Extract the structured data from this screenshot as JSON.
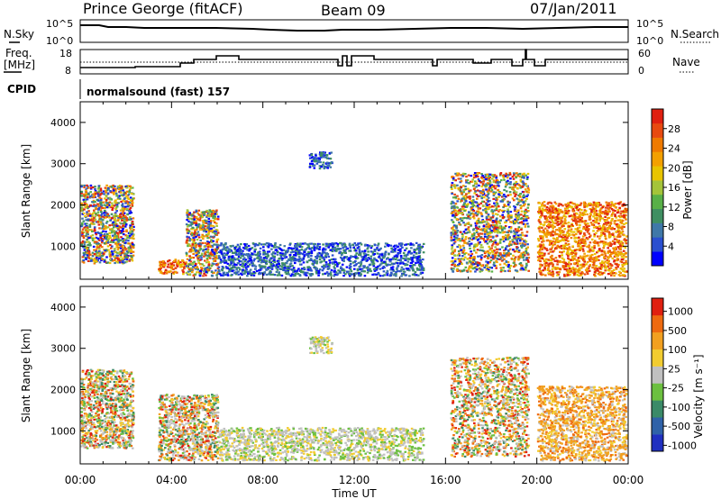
{
  "header": {
    "station": "Prince George (fitACF)",
    "beam": "Beam 09",
    "date": "07/Jan/2011"
  },
  "nsky_panel": {
    "left_label": "N.Sky",
    "right_label": "N.Search",
    "left_ticks": [
      "10^5",
      "10^0"
    ],
    "right_ticks": [
      "10^5",
      "10^0"
    ]
  },
  "freq_panel": {
    "left_label_line1": "Freq.",
    "left_label_line2": "[MHz]",
    "right_label": "Nave",
    "left_ticks": [
      "18",
      "8"
    ],
    "right_ticks": [
      "60",
      "0"
    ]
  },
  "cpid": {
    "label": "CPID",
    "value": "normalsound (fast) 157"
  },
  "chart_data": [
    {
      "type": "heatmap",
      "title": "",
      "xlabel": "Time UT",
      "ylabel": "Slant Range [km]",
      "x_ticks": [
        "00:00",
        "04:00",
        "08:00",
        "12:00",
        "16:00",
        "20:00",
        "00:00"
      ],
      "y_ticks": [
        "1000",
        "2000",
        "3000",
        "4000"
      ],
      "ylim": [
        200,
        4500
      ],
      "colorbar": {
        "label": "Power [dB]",
        "ticks": [
          "4",
          "8",
          "12",
          "16",
          "20",
          "24",
          "28"
        ],
        "colors": [
          "#0000ff",
          "#2a4fd0",
          "#3f78a8",
          "#3f8f62",
          "#58b048",
          "#a4c43a",
          "#e8c400",
          "#f3a000",
          "#ef7a00",
          "#e84a10",
          "#e02010"
        ]
      },
      "regions": [
        {
          "t": [
            0.0,
            2.3
          ],
          "r": [
            600,
            2500
          ],
          "level": "mixed"
        },
        {
          "t": [
            3.4,
            4.6
          ],
          "r": [
            350,
            700
          ],
          "level": "high"
        },
        {
          "t": [
            4.6,
            6.0
          ],
          "r": [
            300,
            1900
          ],
          "level": "mixed"
        },
        {
          "t": [
            6.0,
            15.0
          ],
          "r": [
            300,
            1100
          ],
          "level": "low"
        },
        {
          "t": [
            10.0,
            11.0
          ],
          "r": [
            2900,
            3300
          ],
          "level": "low"
        },
        {
          "t": [
            16.2,
            19.6
          ],
          "r": [
            400,
            2800
          ],
          "level": "mixed"
        },
        {
          "t": [
            20.0,
            23.9
          ],
          "r": [
            300,
            2100
          ],
          "level": "high"
        }
      ]
    },
    {
      "type": "heatmap",
      "title": "",
      "xlabel": "Time UT",
      "ylabel": "Slant Range [km]",
      "x_ticks": [
        "00:00",
        "04:00",
        "08:00",
        "12:00",
        "16:00",
        "20:00",
        "00:00"
      ],
      "y_ticks": [
        "1000",
        "2000",
        "3000",
        "4000"
      ],
      "ylim": [
        200,
        4500
      ],
      "colorbar": {
        "label": "Velocity [m s⁻¹]",
        "ticks": [
          "1000",
          "500",
          "100",
          "25",
          "-25",
          "-100",
          "-500",
          "-1000"
        ],
        "colors": [
          "#2030c0",
          "#2f62a8",
          "#3a8a68",
          "#6cc040",
          "#c0c0c0",
          "#f2cc30",
          "#f2a020",
          "#ee6a10",
          "#e02010"
        ]
      },
      "regions": [
        {
          "t": [
            0.0,
            2.3
          ],
          "r": [
            600,
            2500
          ],
          "level": "mixed"
        },
        {
          "t": [
            3.4,
            6.0
          ],
          "r": [
            300,
            1900
          ],
          "level": "mixed"
        },
        {
          "t": [
            6.0,
            15.0
          ],
          "r": [
            300,
            1100
          ],
          "level": "low"
        },
        {
          "t": [
            10.0,
            11.0
          ],
          "r": [
            2900,
            3300
          ],
          "level": "low"
        },
        {
          "t": [
            16.2,
            19.6
          ],
          "r": [
            400,
            2800
          ],
          "level": "mixed"
        },
        {
          "t": [
            20.0,
            23.9
          ],
          "r": [
            300,
            2100
          ],
          "level": "high"
        }
      ]
    }
  ]
}
